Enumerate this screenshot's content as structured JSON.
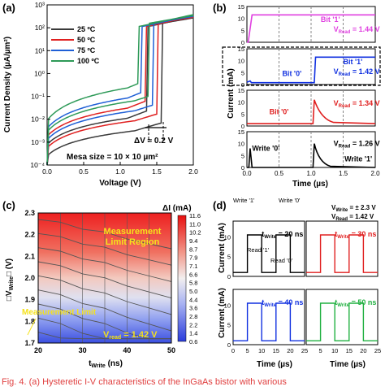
{
  "panels": {
    "a": "(a)",
    "b": "(b)",
    "c": "(c)",
    "d": "(d)"
  },
  "caption": "Fig. 4. (a) Hysteretic I-V characteristics of the InGaAs bistor with various",
  "colors": {
    "t25": "#3a3a3a",
    "t50": "#e02020",
    "t75": "#1f5fd6",
    "t100": "#2e9a58",
    "magenta": "#e040e0",
    "red": "#e02020",
    "blue": "#1030e0",
    "green": "#20b040",
    "black": "#000000"
  },
  "chart_data": [
    {
      "panel": "a",
      "type": "line",
      "ylabel": "Current Density (µA/µm²)",
      "xlabel": "Voltage (V)",
      "xlim": [
        0,
        2.0
      ],
      "ylim_log10": [
        -4,
        3
      ],
      "log_y": true,
      "xticks": [
        "0.0",
        "0.5",
        "1.0",
        "1.5",
        "2.0"
      ],
      "yticks": [
        "10⁻⁴",
        "10⁻³",
        "10⁻²",
        "10⁻¹",
        "10⁰",
        "10¹",
        "10²",
        "10³"
      ],
      "legend_position": "top-left",
      "annotations": [
        "ΔV ≈ 0.2 V",
        "Mesa size = 10 × 10 µm²"
      ],
      "series": [
        {
          "name": "25 ºC",
          "color": "#3a3a3a",
          "switch_up_v": 1.58,
          "switch_down_v": 1.38
        },
        {
          "name": "50 ºC",
          "color": "#e02020",
          "switch_up_v": 1.52,
          "switch_down_v": 1.35
        },
        {
          "name": "75 ºC",
          "color": "#1f5fd6",
          "switch_up_v": 1.46,
          "switch_down_v": 1.3
        },
        {
          "name": "100 ºC",
          "color": "#2e9a58",
          "switch_up_v": 1.4,
          "switch_down_v": 1.25
        }
      ]
    },
    {
      "panel": "b",
      "type": "line",
      "ylabel": "Current (mA)",
      "xlabel": "Time (µs)",
      "xlim": [
        0,
        2.0
      ],
      "xticks": [
        "0.0",
        "0.5",
        "1.0",
        "1.5",
        "2.0"
      ],
      "subplots": [
        {
          "label": "Bit '1'",
          "vread": "V",
          "vread_sub": "Read",
          "vread_val": "= 1.44 V",
          "color": "#e040e0",
          "ylim": [
            0,
            15
          ],
          "yticks": [
            "0",
            "5",
            "10",
            "15"
          ]
        },
        {
          "label": "Bit '0'",
          "label2": "Bit '1'",
          "vread": "V",
          "vread_sub": "Read",
          "vread_val": "= 1.42 V",
          "color": "#1030e0",
          "ylim": [
            0,
            15
          ],
          "yticks": [
            "0",
            "5",
            "10",
            "15"
          ]
        },
        {
          "label": "Bit '0'",
          "vread": "V",
          "vread_sub": "Read",
          "vread_val": "= 1.34 V",
          "color": "#e02020",
          "ylim": [
            0,
            15
          ],
          "yticks": [
            "0",
            "5",
            "10",
            "15"
          ]
        },
        {
          "label": "Write '0'",
          "label2": "Write '1'",
          "vread": "V",
          "vread_sub": "Read",
          "vread_val": "= 1.26 V",
          "color": "#000000",
          "ylim": [
            0,
            15
          ],
          "yticks": [
            "0",
            "5",
            "10",
            "15"
          ]
        }
      ]
    },
    {
      "panel": "c",
      "type": "heatmap",
      "title": "ΔI (mA)",
      "ylabel_prefix": "□V",
      "ylabel_sub": "Write",
      "ylabel_suffix": "□ (V)",
      "xlabel": "t",
      "xlabel_sub": "Write",
      "xlabel_unit": " (ns)",
      "xlim": [
        20,
        50
      ],
      "ylim": [
        1.7,
        2.3
      ],
      "xticks": [
        "20",
        "30",
        "40",
        "50"
      ],
      "yticks": [
        "1.7",
        "1.8",
        "1.9",
        "2.0",
        "2.1",
        "2.2",
        "2.3"
      ],
      "colorbar_ticks": [
        "11.6",
        "11.0",
        "10.2",
        "9.4",
        "8.7",
        "7.9",
        "7.1",
        "6.6",
        "5.8",
        "5.0",
        "4.4",
        "3.6",
        "2.8",
        "2.2",
        "1.4",
        "0.6"
      ],
      "region_labels": [
        "Measurement",
        "Limit Region",
        "Measurement Limit"
      ],
      "vread_text": "V",
      "vread_sub": "read",
      "vread_val": " = 1.42 V"
    },
    {
      "panel": "d",
      "type": "line",
      "ylabel": "Current (mA)",
      "xlabel": "Time (µs)",
      "xlim": [
        0,
        25
      ],
      "xticks": [
        "0",
        "5",
        "10",
        "15",
        "20",
        "25"
      ],
      "yticks": [
        "0",
        "5",
        "10"
      ],
      "conditions": "V",
      "conditions_sub": "Write",
      "conditions_val": " = ± 2.3 V",
      "conditions2": "V",
      "conditions2_sub": "Read",
      "conditions2_val": " = 1.42 V",
      "markers": [
        "Write '1'",
        "Write '0'",
        "Read '1'",
        "Read '0'"
      ],
      "subplots": [
        {
          "t": "t",
          "t_sub": "Write",
          "t_val": " = 20 ns",
          "color": "#000000"
        },
        {
          "t": "t",
          "t_sub": "Write",
          "t_val": " = 30 ns",
          "color": "#e02020"
        },
        {
          "t": "t",
          "t_sub": "Write",
          "t_val": " = 40 ns",
          "color": "#1030e0"
        },
        {
          "t": "t",
          "t_sub": "Write",
          "t_val": " = 50 ns",
          "color": "#20b040"
        }
      ]
    }
  ]
}
